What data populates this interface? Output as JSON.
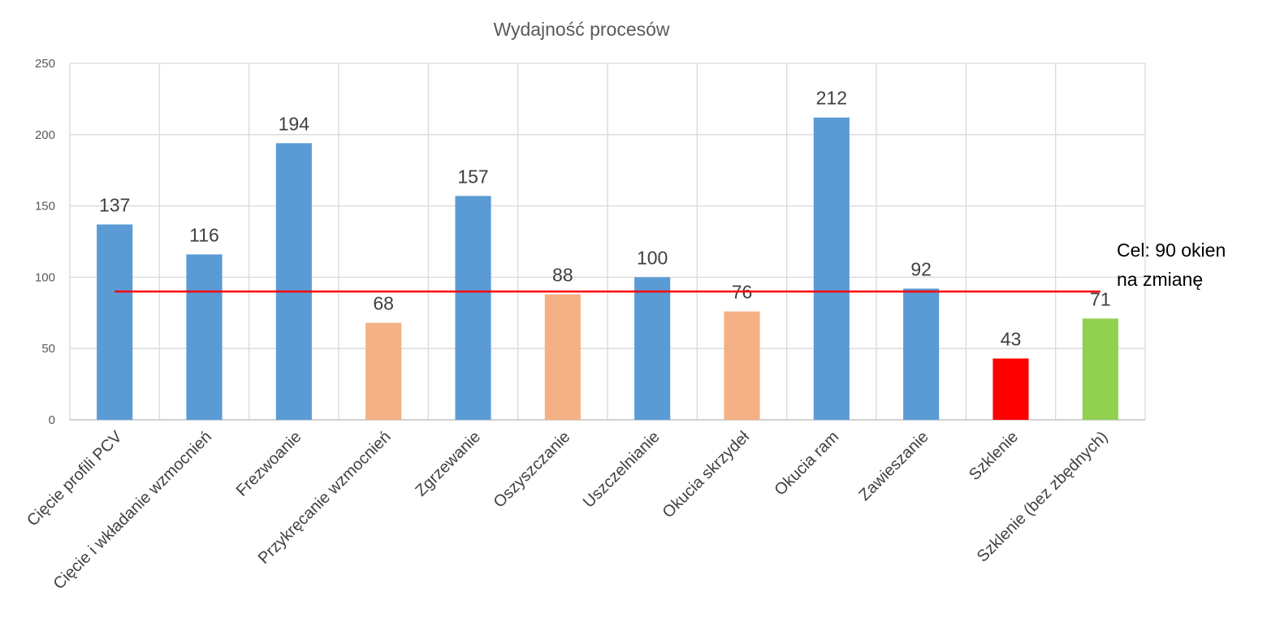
{
  "chart_data": {
    "type": "bar",
    "title": "Wydajność procesów",
    "xlabel": "",
    "ylabel": "",
    "ylim": [
      0,
      250
    ],
    "yticks": [
      0,
      50,
      100,
      150,
      200,
      250
    ],
    "grid": true,
    "categories": [
      "Cięcie profili PCV",
      "Cięcie i wkładanie wzmocnień",
      "Frezwoanie",
      "Przykręcanie wzmocnień",
      "Zgrzewanie",
      "Oszyszczanie",
      "Uszczelnianie",
      "Okucia skrzydeł",
      "Okucia ram",
      "Zawieszanie",
      "Szklenie",
      "Szklenie (bez zbędnych)"
    ],
    "values": [
      137,
      116,
      194,
      68,
      157,
      88,
      100,
      76,
      212,
      92,
      43,
      71
    ],
    "bar_colors": [
      "#5b9bd5",
      "#5b9bd5",
      "#5b9bd5",
      "#f4b183",
      "#5b9bd5",
      "#f4b183",
      "#5b9bd5",
      "#f4b183",
      "#5b9bd5",
      "#5b9bd5",
      "#ff0000",
      "#92d050"
    ],
    "target": {
      "value": 90,
      "color": "#ff0000",
      "label_lines": [
        "Cel: 90 okien",
        "na zmianę"
      ]
    }
  }
}
